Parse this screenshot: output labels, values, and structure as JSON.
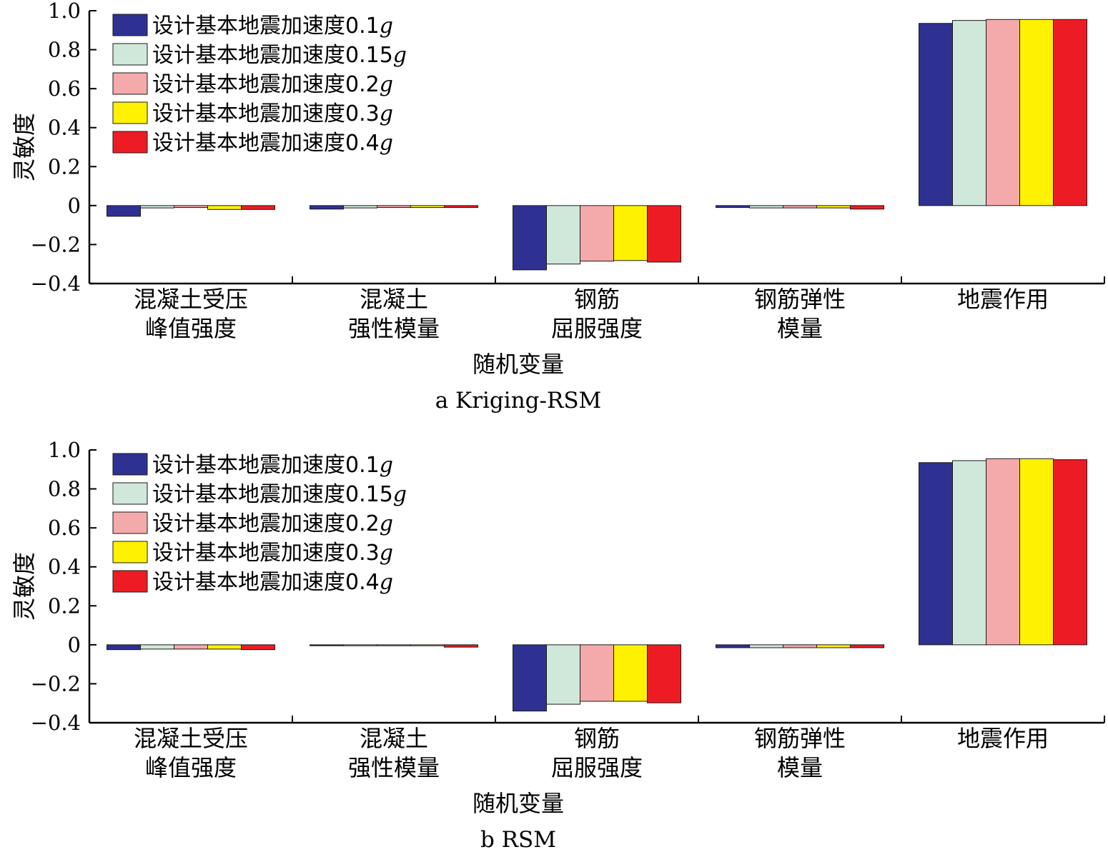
{
  "chart_data": [
    {
      "type": "bar",
      "caption": "a Kriging-RSM",
      "xlabel": "随机变量",
      "ylabel": "灵敏度",
      "ylim": [
        -0.4,
        1.0
      ],
      "yticks": [
        "1.0",
        "0.8",
        "0.6",
        "0.4",
        "0.2",
        "0",
        "−0.2",
        "−0.4"
      ],
      "ytick_values": [
        1.0,
        0.8,
        0.6,
        0.4,
        0.2,
        0,
        -0.2,
        -0.4
      ],
      "grid": false,
      "legend_position": "top-left",
      "categories": [
        [
          "混凝土受压",
          "峰值强度"
        ],
        [
          "混凝土",
          "强性模量"
        ],
        [
          "钢筋",
          "屈服强度"
        ],
        [
          "钢筋弹性",
          "模量"
        ],
        [
          "地震作用"
        ]
      ],
      "series": [
        {
          "name": "设计基本地震加速度0.1",
          "name_suffix": "g",
          "color": "#2e3192",
          "values": [
            -0.055,
            -0.018,
            -0.33,
            -0.01,
            0.935
          ]
        },
        {
          "name": "设计基本地震加速度0.15",
          "name_suffix": "g",
          "color": "#cfe8da",
          "values": [
            -0.012,
            -0.012,
            -0.3,
            -0.012,
            0.95
          ]
        },
        {
          "name": "设计基本地震加速度0.2",
          "name_suffix": "g",
          "color": "#f4aaaa",
          "values": [
            -0.01,
            -0.01,
            -0.285,
            -0.012,
            0.955
          ]
        },
        {
          "name": "设计基本地震加速度0.3",
          "name_suffix": "g",
          "color": "#fff200",
          "values": [
            -0.02,
            -0.01,
            -0.282,
            -0.012,
            0.955
          ]
        },
        {
          "name": "设计基本地震加速度0.4",
          "name_suffix": "g",
          "color": "#ed1c24",
          "values": [
            -0.02,
            -0.01,
            -0.29,
            -0.018,
            0.955
          ]
        }
      ]
    },
    {
      "type": "bar",
      "caption": "b RSM",
      "xlabel": "随机变量",
      "ylabel": "灵敏度",
      "ylim": [
        -0.4,
        1.0
      ],
      "yticks": [
        "1.0",
        "0.8",
        "0.6",
        "0.4",
        "0.2",
        "0",
        "−0.2",
        "−0.4"
      ],
      "ytick_values": [
        1.0,
        0.8,
        0.6,
        0.4,
        0.2,
        0,
        -0.2,
        -0.4
      ],
      "grid": false,
      "legend_position": "top-left",
      "categories": [
        [
          "混凝土受压",
          "峰值强度"
        ],
        [
          "混凝土",
          "强性模量"
        ],
        [
          "钢筋",
          "屈服强度"
        ],
        [
          "钢筋弹性",
          "模量"
        ],
        [
          "地震作用"
        ]
      ],
      "series": [
        {
          "name": "设计基本地震加速度0.1",
          "name_suffix": "g",
          "color": "#2e3192",
          "values": [
            -0.025,
            -0.005,
            -0.34,
            -0.015,
            0.935
          ]
        },
        {
          "name": "设计基本地震加速度0.15",
          "name_suffix": "g",
          "color": "#cfe8da",
          "values": [
            -0.022,
            -0.005,
            -0.305,
            -0.015,
            0.945
          ]
        },
        {
          "name": "设计基本地震加速度0.2",
          "name_suffix": "g",
          "color": "#f4aaaa",
          "values": [
            -0.022,
            -0.005,
            -0.29,
            -0.015,
            0.955
          ]
        },
        {
          "name": "设计基本地震加速度0.3",
          "name_suffix": "g",
          "color": "#fff200",
          "values": [
            -0.022,
            -0.005,
            -0.29,
            -0.015,
            0.955
          ]
        },
        {
          "name": "设计基本地震加速度0.4",
          "name_suffix": "g",
          "color": "#ed1c24",
          "values": [
            -0.025,
            -0.012,
            -0.298,
            -0.015,
            0.95
          ]
        }
      ]
    }
  ]
}
